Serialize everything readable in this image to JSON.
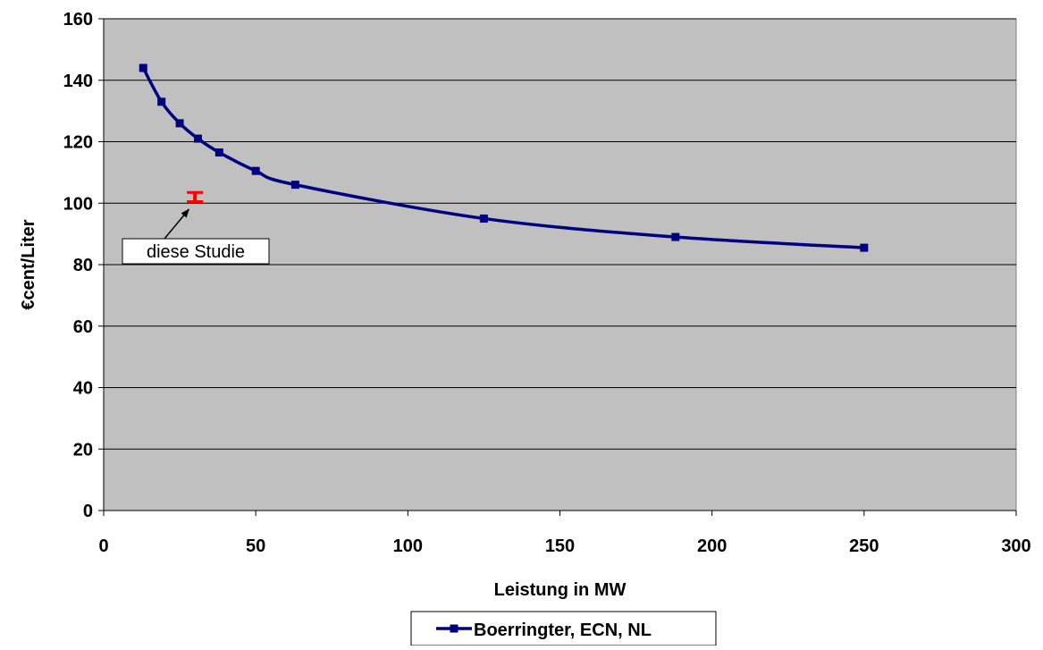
{
  "chart_data": {
    "type": "line",
    "title": "",
    "xlabel": "Leistung in MW",
    "ylabel": "€cent/Liter",
    "xlim": [
      0,
      300
    ],
    "ylim": [
      0,
      160
    ],
    "x_ticks": [
      0,
      50,
      100,
      150,
      200,
      250,
      300
    ],
    "y_ticks": [
      0,
      20,
      40,
      60,
      80,
      100,
      120,
      140,
      160
    ],
    "x_tick_labels": [
      "0",
      "50",
      "100",
      "150",
      "200",
      "250",
      "300"
    ],
    "y_tick_labels": [
      "0",
      "20",
      "40",
      "60",
      "80",
      "100",
      "120",
      "140",
      "160"
    ],
    "grid": "horizontal",
    "plot_background": "#c0c0c0",
    "legend_position": "bottom",
    "series": [
      {
        "name": "Boerringter, ECN, NL",
        "color": "#000080",
        "marker": "square",
        "smooth": true,
        "points": [
          {
            "x": 13,
            "y": 144
          },
          {
            "x": 19,
            "y": 133
          },
          {
            "x": 25,
            "y": 126
          },
          {
            "x": 31,
            "y": 121
          },
          {
            "x": 38,
            "y": 116.5
          },
          {
            "x": 50,
            "y": 110.5
          },
          {
            "x": 63,
            "y": 106
          },
          {
            "x": 125,
            "y": 95
          },
          {
            "x": 188,
            "y": 89
          },
          {
            "x": 250,
            "y": 85.5
          }
        ]
      }
    ],
    "error_bar": {
      "x": 30,
      "y_low": 100.5,
      "y_high": 103.5,
      "color": "#ff0000"
    },
    "annotation": {
      "text": "diese Studie",
      "arrow_to": {
        "x": 28,
        "y": 98
      }
    }
  }
}
